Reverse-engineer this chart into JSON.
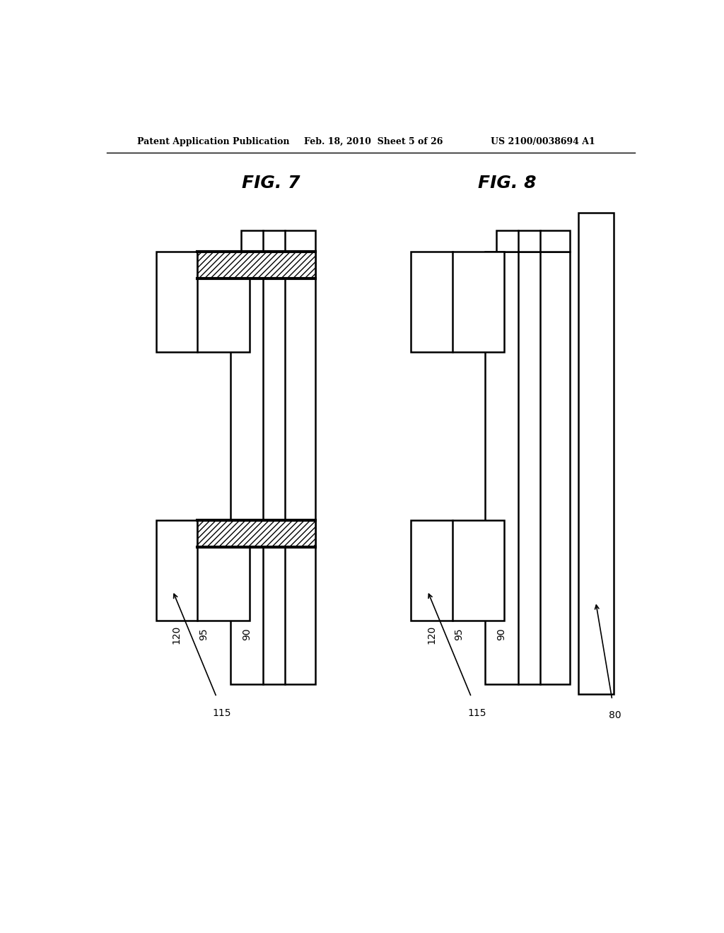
{
  "header_left": "Patent Application Publication",
  "header_mid": "Feb. 18, 2010  Sheet 5 of 26",
  "header_right": "US 2100/0038694 A1",
  "fig7_title": "FIG. 7",
  "fig8_title": "FIG. 8",
  "bg_color": "#ffffff",
  "line_color": "#000000",
  "label_90": "90",
  "label_95": "95",
  "label_120": "120",
  "label_115": "115",
  "label_80": "80"
}
